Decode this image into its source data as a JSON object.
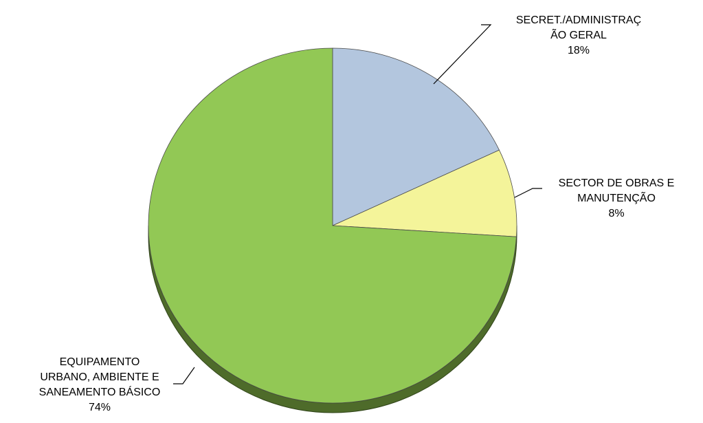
{
  "chart_data": {
    "type": "pie",
    "title": "",
    "style": "3d",
    "slices": [
      {
        "label_lines": [
          "SECRET./ADMINISTRAÇ",
          "ÃO GERAL"
        ],
        "label": "SECRET./ADMINISTRAÇÃO GERAL",
        "value": 18,
        "percent_label": "18%",
        "color": "#B3C6DE"
      },
      {
        "label_lines": [
          "SECTOR DE OBRAS E",
          "MANUTENÇÃO"
        ],
        "label": "SECTOR DE OBRAS E MANUTENÇÃO",
        "value": 8,
        "percent_label": "8%",
        "color": "#F4F49A"
      },
      {
        "label_lines": [
          "EQUIPAMENTO",
          "URBANO, AMBIENTE E",
          "SANEAMENTO BÁSICO"
        ],
        "label": "EQUIPAMENTO URBANO, AMBIENTE E SANEAMENTO BÁSICO",
        "value": 74,
        "percent_label": "74%",
        "color": "#92C855"
      }
    ],
    "side_color": "#4E6B2A",
    "legend": "none"
  }
}
